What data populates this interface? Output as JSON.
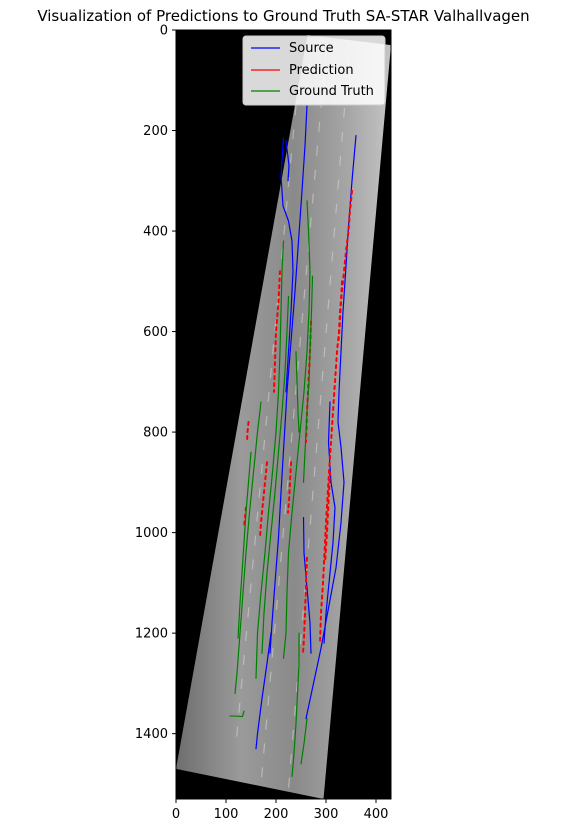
{
  "chart_data": {
    "type": "line",
    "title": "Visualization of Predictions to Ground Truth SA-STAR Valhallvagen",
    "xlabel": "",
    "ylabel": "",
    "xlim": [
      0,
      430
    ],
    "ylim": [
      1530,
      0
    ],
    "y_inverted": true,
    "x_ticks": [
      0,
      100,
      200,
      300,
      400
    ],
    "y_ticks": [
      0,
      200,
      400,
      600,
      800,
      1000,
      1200,
      1400
    ],
    "x_tick_labels": [
      "0",
      "100",
      "200",
      "300",
      "400"
    ],
    "y_tick_labels": [
      "0",
      "200",
      "400",
      "600",
      "800",
      "1000",
      "1200",
      "1400"
    ],
    "grid": false,
    "legend": {
      "placement": "top-right",
      "entries": [
        {
          "label": "Source",
          "color": "#0000ff"
        },
        {
          "label": "Prediction",
          "color": "#ff0000"
        },
        {
          "label": "Ground Truth",
          "color": "#008000"
        }
      ]
    },
    "background_image": {
      "kind": "grayscale aerial road image (rotated)",
      "corners": [
        [
          263,
          10
        ],
        [
          430,
          30
        ],
        [
          295,
          1530
        ],
        [
          0,
          1470
        ]
      ]
    },
    "series": [
      {
        "name": "Source",
        "color": "#0000ff",
        "tracks": [
          [
            [
              262,
              150
            ],
            [
              258,
              230
            ],
            [
              252,
              320
            ],
            [
              245,
              420
            ],
            [
              238,
              520
            ],
            [
              230,
              620
            ],
            [
              222,
              720
            ],
            [
              216,
              820
            ],
            [
              210,
              920
            ],
            [
              205,
              1010
            ],
            [
              198,
              1100
            ],
            [
              192,
              1180
            ],
            [
              188,
              1240
            ]
          ],
          [
            [
              215,
              215
            ],
            [
              210,
              290
            ],
            [
              214,
              350
            ],
            [
              225,
              380
            ],
            [
              232,
              420
            ],
            [
              234,
              480
            ],
            [
              230,
              560
            ],
            [
              225,
              640
            ],
            [
              220,
              720
            ]
          ],
          [
            [
              220,
              220
            ],
            [
              226,
              270
            ],
            [
              224,
              300
            ]
          ],
          [
            [
              360,
              210
            ],
            [
              352,
              300
            ],
            [
              345,
              390
            ],
            [
              340,
              470
            ],
            [
              334,
              560
            ],
            [
              330,
              640
            ],
            [
              326,
              720
            ],
            [
              324,
              780
            ],
            [
              330,
              830
            ],
            [
              336,
              900
            ],
            [
              330,
              980
            ],
            [
              320,
              1070
            ],
            [
              305,
              1150
            ],
            [
              290,
              1230
            ],
            [
              275,
              1300
            ],
            [
              260,
              1370
            ]
          ],
          [
            [
              308,
              740
            ],
            [
              305,
              820
            ],
            [
              310,
              900
            ],
            [
              318,
              950
            ],
            [
              314,
              1020
            ],
            [
              306,
              1100
            ],
            [
              300,
              1160
            ],
            [
              296,
              1220
            ]
          ],
          [
            [
              190,
              1200
            ],
            [
              182,
              1260
            ],
            [
              172,
              1330
            ],
            [
              163,
              1400
            ],
            [
              160,
              1430
            ]
          ],
          [
            [
              255,
              970
            ],
            [
              256,
              1040
            ],
            [
              262,
              1110
            ],
            [
              268,
              1180
            ],
            [
              270,
              1240
            ]
          ]
        ]
      },
      {
        "name": "Prediction",
        "color": "#ff0000",
        "tracks": [
          [
            [
              352,
              320
            ],
            [
              348,
              360
            ],
            [
              345,
              400
            ],
            [
              340,
              440
            ],
            [
              336,
              480
            ],
            [
              332,
              520
            ],
            [
              328,
              560
            ],
            [
              326,
              600
            ],
            [
              322,
              640
            ],
            [
              318,
              700
            ],
            [
              314,
              760
            ],
            [
              310,
              820
            ],
            [
              306,
              880
            ],
            [
              303,
              930
            ],
            [
              300,
              980
            ],
            [
              297,
              1040
            ],
            [
              294,
              1100
            ],
            [
              290,
              1160
            ],
            [
              288,
              1220
            ]
          ],
          [
            [
              332,
              500
            ],
            [
              330,
              540
            ],
            [
              328,
              580
            ],
            [
              325,
              620
            ]
          ],
          [
            [
              208,
              480
            ],
            [
              205,
              540
            ],
            [
              200,
              600
            ],
            [
              198,
              660
            ],
            [
              196,
              720
            ]
          ],
          [
            [
              262,
              1050
            ],
            [
              260,
              1100
            ],
            [
              258,
              1160
            ],
            [
              256,
              1210
            ],
            [
              254,
              1240
            ]
          ],
          [
            [
              230,
              860
            ],
            [
              228,
              900
            ],
            [
              226,
              940
            ],
            [
              224,
              960
            ]
          ],
          [
            [
              182,
              860
            ],
            [
              178,
              900
            ],
            [
              174,
              940
            ],
            [
              170,
              980
            ],
            [
              168,
              1010
            ]
          ],
          [
            [
              145,
              780
            ],
            [
              143,
              800
            ],
            [
              142,
              820
            ]
          ],
          [
            [
              270,
              580
            ],
            [
              268,
              640
            ],
            [
              265,
              700
            ],
            [
              262,
              760
            ],
            [
              260,
              820
            ]
          ],
          [
            [
              140,
              950
            ],
            [
              138,
              970
            ],
            [
              136,
              990
            ]
          ],
          [
            [
              308,
              880
            ],
            [
              305,
              940
            ],
            [
              302,
              1000
            ],
            [
              298,
              1060
            ]
          ]
        ]
      },
      {
        "name": "Ground Truth",
        "color": "#008000",
        "tracks": [
          [
            [
              262,
              340
            ],
            [
              265,
              400
            ],
            [
              268,
              480
            ],
            [
              266,
              560
            ],
            [
              262,
              640
            ],
            [
              256,
              720
            ],
            [
              248,
              800
            ],
            [
              240,
              880
            ],
            [
              232,
              960
            ],
            [
              225,
              1040
            ],
            [
              222,
              1120
            ],
            [
              220,
              1200
            ],
            [
              215,
              1250
            ]
          ],
          [
            [
              215,
              420
            ],
            [
              212,
              480
            ],
            [
              210,
              560
            ],
            [
              208,
              640
            ],
            [
              205,
              720
            ],
            [
              200,
              800
            ],
            [
              193,
              880
            ],
            [
              185,
              960
            ],
            [
              178,
              1040
            ],
            [
              170,
              1120
            ],
            [
              163,
              1200
            ],
            [
              160,
              1290
            ]
          ],
          [
            [
              170,
              740
            ],
            [
              163,
              800
            ],
            [
              155,
              880
            ],
            [
              147,
              960
            ],
            [
              140,
              1040
            ],
            [
              134,
              1120
            ],
            [
              128,
              1200
            ],
            [
              122,
              1280
            ],
            [
              118,
              1320
            ]
          ],
          [
            [
              225,
              530
            ],
            [
              222,
              600
            ],
            [
              218,
              680
            ],
            [
              212,
              760
            ],
            [
              205,
              840
            ],
            [
              198,
              920
            ],
            [
              190,
              1000
            ],
            [
              182,
              1080
            ],
            [
              176,
              1160
            ],
            [
              172,
              1240
            ]
          ],
          [
            [
              273,
              490
            ],
            [
              271,
              560
            ],
            [
              268,
              640
            ],
            [
              266,
              700
            ],
            [
              262,
              760
            ],
            [
              258,
              840
            ],
            [
              255,
              900
            ]
          ],
          [
            [
              240,
              640
            ],
            [
              242,
              700
            ],
            [
              244,
              760
            ],
            [
              246,
              800
            ]
          ],
          [
            [
              150,
              840
            ],
            [
              145,
              900
            ],
            [
              140,
              960
            ],
            [
              136,
              1020
            ],
            [
              132,
              1080
            ],
            [
              128,
              1140
            ],
            [
              124,
              1210
            ]
          ],
          [
            [
              108,
              1365
            ],
            [
              120,
              1365
            ],
            [
              133,
              1366
            ],
            [
              136,
              1355
            ]
          ],
          [
            [
              246,
              1200
            ],
            [
              246,
              1260
            ],
            [
              243,
              1320
            ],
            [
              240,
              1380
            ],
            [
              236,
              1440
            ],
            [
              232,
              1485
            ]
          ],
          [
            [
              262,
              1370
            ],
            [
              256,
              1420
            ],
            [
              250,
              1460
            ]
          ]
        ]
      }
    ]
  }
}
